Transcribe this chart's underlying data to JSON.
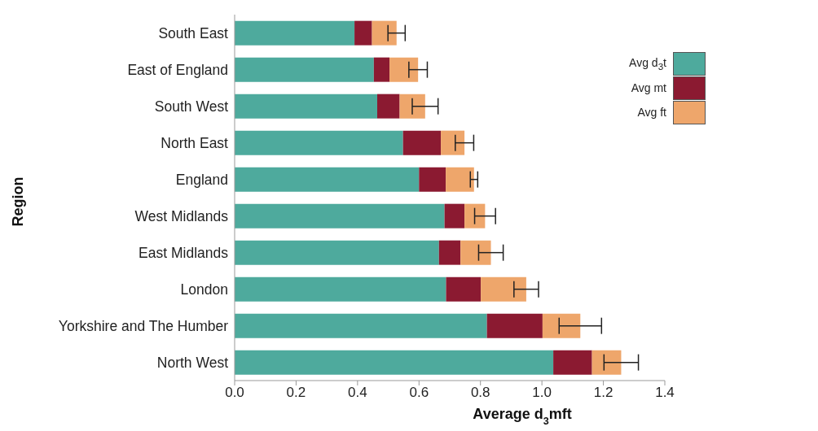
{
  "chart_data": {
    "type": "bar",
    "orientation": "horizontal",
    "stacked": true,
    "xlabel": "Average d$_{3}$mft",
    "ylabel": "Region",
    "categories": [
      "South East",
      "East of England",
      "South West",
      "North East",
      "England",
      "West Midlands",
      "East Midlands",
      "London",
      "Yorkshire and The Humber",
      "North West"
    ],
    "series": [
      {
        "name": "Avg d$_{3}$t",
        "color": "#4eaa9d",
        "values": [
          0.39,
          0.453,
          0.464,
          0.548,
          0.6,
          0.683,
          0.665,
          0.688,
          0.821,
          1.037
        ]
      },
      {
        "name": "Avg mt",
        "color": "#8b1a31",
        "values": [
          0.057,
          0.051,
          0.073,
          0.123,
          0.087,
          0.065,
          0.07,
          0.113,
          0.181,
          0.126
        ]
      },
      {
        "name": "Avg ft",
        "color": "#eea66b",
        "values": [
          0.08,
          0.093,
          0.083,
          0.077,
          0.092,
          0.067,
          0.099,
          0.148,
          0.123,
          0.095
        ],
        "errors": [
          0.028,
          0.03,
          0.042,
          0.03,
          0.012,
          0.034,
          0.04,
          0.04,
          0.069,
          0.056
        ]
      }
    ],
    "xlim": [
      0,
      1.4
    ],
    "xticks": [
      {
        "value": 0,
        "label": "0.0"
      },
      0.2,
      0.4,
      0.6,
      0.8,
      {
        "value": 1,
        "label": "1.0"
      },
      1.2,
      1.4
    ],
    "legend": "top right"
  }
}
